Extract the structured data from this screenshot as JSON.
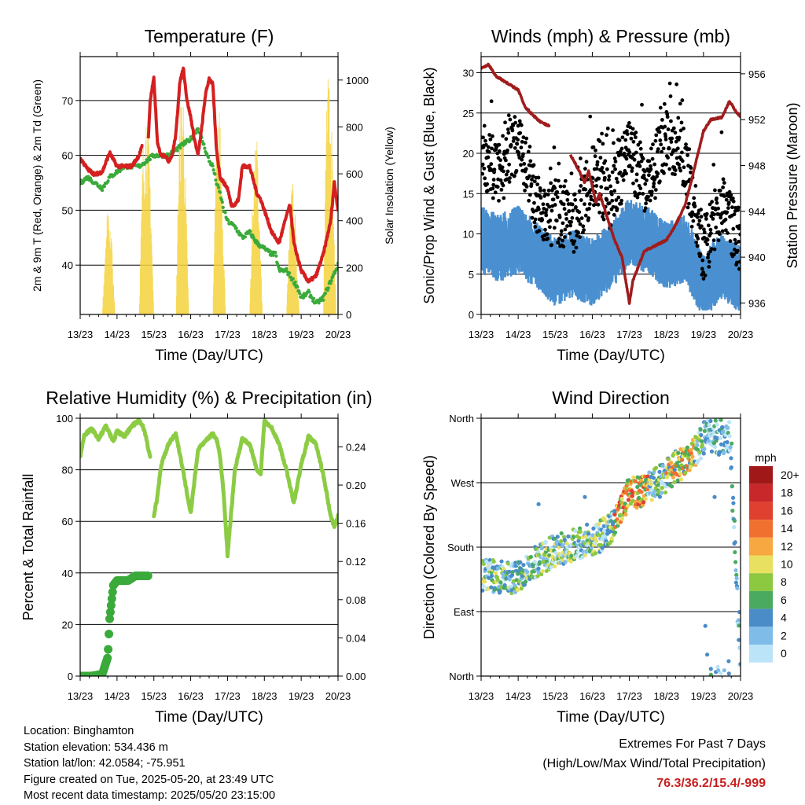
{
  "panels": {
    "temperature": {
      "title": "Temperature (F)",
      "xlabel": "Time (Day/UTC)",
      "ylabel_left": "2m & 9m T (Red, Orange) & 2m Td (Green)",
      "ylabel_right": "Solar Insolation (Yellow)"
    },
    "winds": {
      "title": "Winds (mph) & Pressure (mb)",
      "xlabel": "Time (Day/UTC)",
      "ylabel_left": "Sonic/Prop Wind & Gust (Blue, Black)",
      "ylabel_right": "Station Pressure (Maroon)"
    },
    "humidity": {
      "title": "Relative Humidity (%) & Precipitation (in)",
      "xlabel": "Time (Day/UTC)",
      "ylabel_left": "Percent & Total Rainfall"
    },
    "direction": {
      "title": "Wind Direction",
      "xlabel": "Time (Day/UTC)",
      "ylabel_left": "Direction (Colored By Speed)"
    }
  },
  "info": {
    "location": "Location: Binghamton",
    "elevation": "Station elevation: 534.436 m",
    "latlon": "Station lat/lon: 42.0584; -75.951",
    "created": "Figure created on Tue, 2025-05-20, at 23:49 UTC",
    "recent": "Most recent data timestamp: 2025/05/20 23:15:00"
  },
  "extremes": {
    "line1": "Extremes For Past 7 Days",
    "line2": "(High/Low/Max Wind/Total Precipitation)",
    "values": "76.3/36.2/15.4/-999"
  },
  "colors": {
    "temp": "#d42020",
    "dewpoint": "#3aaa3a",
    "solar": "#f5d23c",
    "gust": "#000000",
    "wind": "#4a90d0",
    "pressure": "#a01c1c",
    "rh": "#8ccc44",
    "rain": "#3aaa3a"
  },
  "chart_data": [
    {
      "type": "line",
      "name": "temperature",
      "x_ticks": [
        "13/23",
        "14/23",
        "15/23",
        "16/23",
        "17/23",
        "18/23",
        "19/23",
        "20/23"
      ],
      "xlim": [
        0,
        7
      ],
      "ylim": [
        31,
        78
      ],
      "y_ticks": [
        40,
        50,
        60,
        70
      ],
      "y2lim": [
        0,
        1100
      ],
      "y2_ticks": [
        0,
        200,
        400,
        600,
        800,
        1000
      ],
      "grid": true,
      "series": [
        {
          "role": "temp",
          "x": [
            0,
            0.2,
            0.4,
            0.6,
            0.8,
            1.0,
            1.2,
            1.4,
            1.6,
            1.7,
            1.75,
            1.8,
            1.85,
            1.9,
            2.0,
            2.1,
            2.2,
            2.3,
            2.4,
            2.5,
            2.6,
            2.7,
            2.8,
            2.9,
            3.0,
            3.1,
            3.2,
            3.3,
            3.4,
            3.5,
            3.6,
            3.7,
            3.8,
            3.9,
            4.0,
            4.1,
            4.2,
            4.3,
            4.4,
            4.6,
            4.8,
            4.9,
            5.0,
            5.1,
            5.2,
            5.4,
            5.6,
            5.7,
            5.8,
            6.0,
            6.2,
            6.4,
            6.6,
            6.8,
            6.9,
            7.0
          ],
          "y": [
            59.5,
            57.5,
            56.5,
            57,
            60.5,
            58,
            58,
            58,
            60,
            62,
            63,
            60,
            63,
            70,
            74,
            62,
            60,
            60,
            59,
            60,
            64,
            73,
            76,
            70,
            67,
            63,
            60,
            65,
            71,
            74,
            73,
            61,
            56,
            55,
            54,
            51,
            51,
            52,
            58,
            58,
            53,
            52,
            50,
            48,
            46,
            44,
            49,
            51,
            44,
            39,
            37,
            38,
            42,
            48,
            55,
            50
          ]
        },
        {
          "role": "dewpoint",
          "x": [
            0,
            0.2,
            0.4,
            0.6,
            0.8,
            1.0,
            1.2,
            1.4,
            1.6,
            1.8,
            2.0,
            2.2,
            2.4,
            2.6,
            2.8,
            3.0,
            3.2,
            3.4,
            3.5,
            3.6,
            3.7,
            3.8,
            3.9,
            4.0,
            4.2,
            4.4,
            4.6,
            4.8,
            5.0,
            5.2,
            5.3,
            5.4,
            5.6,
            5.8,
            5.9,
            6.0,
            6.2,
            6.4,
            6.6,
            6.8,
            7.0
          ],
          "y": [
            55,
            56,
            55,
            54,
            56,
            57,
            58,
            58,
            58,
            59,
            60,
            60,
            60,
            61,
            62,
            63,
            65,
            61,
            59,
            58,
            55,
            53,
            50,
            48,
            47,
            45,
            46,
            44,
            43,
            42,
            42,
            39,
            39,
            37,
            36,
            34,
            35,
            33,
            34,
            37,
            40
          ]
        },
        {
          "role": "solar",
          "x": [
            0,
            0.6,
            0.7,
            0.8,
            0.95,
            1.6,
            1.7,
            1.8,
            1.9,
            2.0,
            2.6,
            2.7,
            2.8,
            2.95,
            3.6,
            3.7,
            3.8,
            3.95,
            4.6,
            4.7,
            4.8,
            4.95,
            5.6,
            5.7,
            5.8,
            5.95,
            6.6,
            6.7,
            6.8,
            6.95,
            7.0
          ],
          "y": [
            0,
            0,
            430,
            520,
            0,
            0,
            720,
            960,
            650,
            0,
            0,
            900,
            1000,
            0,
            0,
            820,
            900,
            0,
            0,
            650,
            760,
            0,
            0,
            500,
            600,
            0,
            0,
            1050,
            980,
            0,
            0
          ]
        }
      ]
    },
    {
      "type": "scatter",
      "name": "winds",
      "x_ticks": [
        "13/23",
        "14/23",
        "15/23",
        "16/23",
        "17/23",
        "18/23",
        "19/23",
        "20/23"
      ],
      "xlim": [
        0,
        7
      ],
      "ylim": [
        0,
        32
      ],
      "y_ticks": [
        0,
        5,
        10,
        15,
        20,
        25,
        30
      ],
      "y2lim": [
        935,
        957.5
      ],
      "y2_ticks": [
        936,
        940,
        944,
        948,
        952,
        956
      ],
      "grid": true,
      "series": [
        {
          "role": "gust",
          "x": [
            0,
            0.5,
            1.0,
            1.5,
            1.8,
            2.0,
            2.5,
            3.0,
            3.5,
            3.8,
            4.0,
            4.5,
            5.0,
            5.3,
            5.5,
            6.0,
            6.5,
            7.0
          ],
          "y": [
            20,
            17,
            22,
            14,
            12,
            13,
            11,
            17,
            14,
            18,
            20,
            16,
            22,
            21,
            19,
            8,
            14,
            9
          ]
        },
        {
          "role": "wind",
          "x": [
            0,
            0.5,
            1.0,
            1.5,
            2.0,
            2.5,
            3.0,
            3.5,
            4.0,
            4.5,
            5.0,
            5.5,
            6.0,
            6.5,
            7.0
          ],
          "y": [
            10,
            9,
            10,
            8,
            6,
            7,
            6,
            8,
            11,
            10,
            8,
            9,
            4,
            7,
            5
          ]
        },
        {
          "role": "pressure",
          "x": [
            0,
            0.2,
            0.4,
            0.8,
            1.0,
            1.2,
            1.6,
            1.8,
            1.85,
            2.4,
            2.6,
            2.8,
            2.9,
            3.1,
            3.2,
            3.4,
            3.6,
            3.8,
            3.9,
            4.0,
            4.1,
            4.4,
            4.7,
            5.0,
            5.2,
            5.5,
            5.7,
            6.0,
            6.2,
            6.5,
            6.7,
            6.9,
            7.0
          ],
          "y": [
            956.5,
            956.8,
            955.8,
            955,
            954.6,
            953,
            951.8,
            951.5,
            951.5,
            949,
            947.8,
            946.5,
            947.5,
            944.8,
            945.5,
            943.5,
            941.5,
            940,
            938,
            936,
            938,
            940.5,
            941,
            941.5,
            942.5,
            944.5,
            947,
            951,
            952,
            952.2,
            953.6,
            952.6,
            952.3
          ]
        }
      ]
    },
    {
      "type": "line",
      "name": "humidity",
      "x_ticks": [
        "13/23",
        "14/23",
        "15/23",
        "16/23",
        "17/23",
        "18/23",
        "19/23",
        "20/23"
      ],
      "xlim": [
        0,
        7
      ],
      "ylim": [
        0,
        100
      ],
      "y_ticks": [
        0,
        20,
        40,
        60,
        80,
        100
      ],
      "y2lim": [
        0,
        0.27
      ],
      "y2_ticks": [
        0.0,
        0.04,
        0.08,
        0.12,
        0.16,
        0.2,
        0.24
      ],
      "grid": true,
      "series": [
        {
          "role": "rh",
          "segments": [
            {
              "x": [
                0,
                0.1,
                0.3,
                0.5,
                0.7,
                0.9,
                1.0,
                1.2,
                1.4,
                1.6,
                1.7,
                1.8,
                1.85,
                1.9
              ],
              "y": [
                85,
                93,
                96,
                92,
                97,
                91,
                95,
                93,
                97,
                99,
                97,
                92,
                88,
                85
              ]
            },
            {
              "x": [
                2.0,
                2.1,
                2.2,
                2.4,
                2.6,
                2.8,
                3.0,
                3.2,
                3.4,
                3.6,
                3.7,
                3.8,
                3.9,
                4.0,
                4.2,
                4.4,
                4.6,
                4.8,
                4.9,
                5.0,
                5.2,
                5.4,
                5.6,
                5.8,
                6.0,
                6.2,
                6.4,
                6.6,
                6.8,
                6.9,
                7.0
              ],
              "y": [
                62,
                70,
                82,
                90,
                94,
                79,
                63,
                88,
                91,
                94,
                92,
                85,
                70,
                47,
                80,
                92,
                90,
                80,
                78,
                99,
                96,
                90,
                80,
                67,
                82,
                93,
                90,
                78,
                62,
                58,
                62
              ]
            }
          ]
        },
        {
          "role": "rain",
          "x": [
            0,
            0.3,
            0.6,
            0.75,
            0.8,
            0.9,
            1.0,
            1.1,
            1.3,
            1.5,
            1.7,
            1.85
          ],
          "y": [
            0,
            0,
            0.002,
            0.02,
            0.06,
            0.095,
            0.1,
            0.1,
            0.1,
            0.105,
            0.105,
            0.105
          ]
        }
      ]
    },
    {
      "type": "scatter",
      "name": "direction",
      "x_ticks": [
        "13/23",
        "14/23",
        "15/23",
        "16/23",
        "17/23",
        "18/23",
        "19/23",
        "20/23"
      ],
      "xlim": [
        0,
        7
      ],
      "y_labels": [
        "North",
        "East",
        "South",
        "West",
        "North"
      ],
      "y_label_values": [
        0,
        90,
        180,
        270,
        360
      ],
      "ylim": [
        0,
        360
      ],
      "colorbar": {
        "title": "mph",
        "labels": [
          "20+",
          "18",
          "16",
          "14",
          "12",
          "10",
          "8",
          "6",
          "4",
          "2",
          "0"
        ],
        "colors": [
          "#a01818",
          "#c8282a",
          "#e04030",
          "#f07030",
          "#f8a840",
          "#e8e060",
          "#8cc840",
          "#4aaa60",
          "#4a8cc8",
          "#80bce8",
          "#bce4f8"
        ]
      },
      "series": [
        {
          "role": "direction",
          "x": [
            0,
            0.3,
            0.6,
            0.9,
            1.2,
            1.5,
            1.8,
            2.0,
            2.3,
            2.6,
            2.9,
            3.2,
            3.5,
            3.8,
            4.0,
            4.3,
            4.6,
            4.9,
            5.2,
            5.5,
            5.8,
            6.1,
            6.4,
            6.7,
            7.0
          ],
          "y": [
            140,
            140,
            138,
            135,
            150,
            160,
            170,
            175,
            180,
            185,
            190,
            195,
            205,
            230,
            260,
            255,
            265,
            275,
            290,
            300,
            315,
            340,
            330,
            335,
            10
          ]
        }
      ]
    }
  ]
}
